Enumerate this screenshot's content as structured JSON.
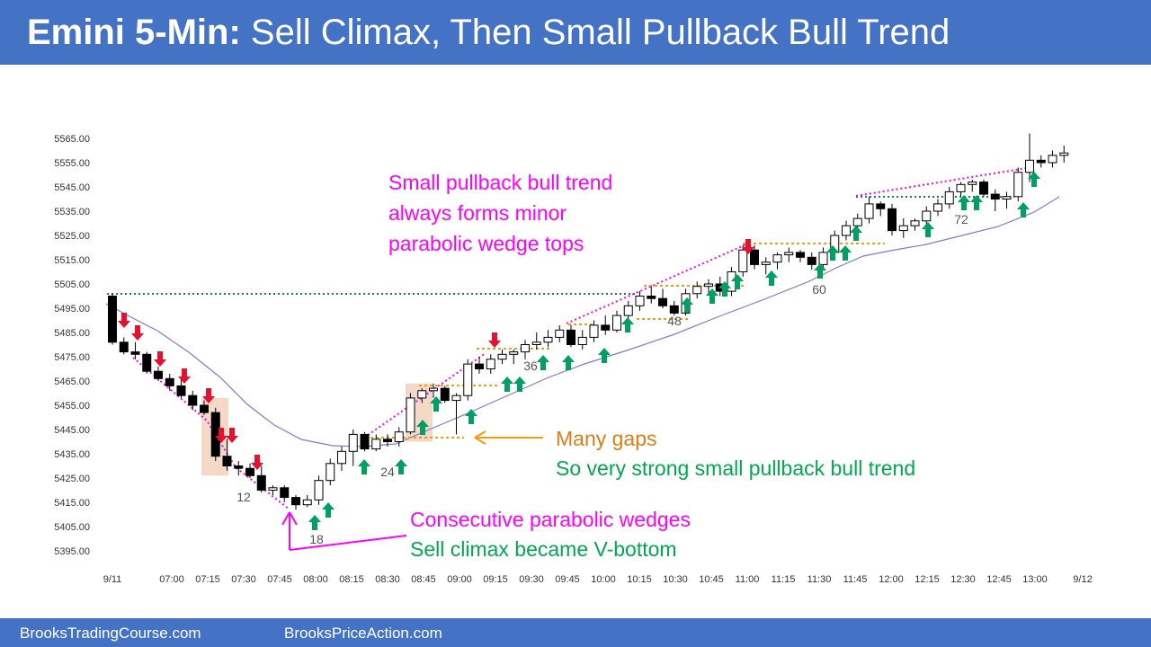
{
  "header": {
    "title_bold": "Emini 5-Min:",
    "title_rest": "Sell Climax, Then Small Pullback Bull Trend",
    "background": "#4472c4"
  },
  "footer": {
    "left_link": "BrooksTradingCourse.com",
    "right_link": "BrooksPriceAction.com"
  },
  "chart_data": {
    "type": "candlestick",
    "title": "Emini 5-Min: Sell Climax, Then Small Pullback Bull Trend",
    "y_ticks": [
      "5565.00",
      "5555.00",
      "5545.00",
      "5535.00",
      "5525.00",
      "5515.00",
      "5505.00",
      "5495.00",
      "5485.00",
      "5475.00",
      "5465.00",
      "5455.00",
      "5445.00",
      "5435.00",
      "5425.00",
      "5415.00",
      "5405.00",
      "5395.00"
    ],
    "ylim": [
      5390,
      5570
    ],
    "x_ticks": [
      "9/11",
      "07:00",
      "07:15",
      "07:30",
      "07:45",
      "08:00",
      "08:15",
      "08:30",
      "08:45",
      "09:00",
      "09:15",
      "09:30",
      "09:45",
      "10:00",
      "10:15",
      "10:30",
      "10:45",
      "11:00",
      "11:15",
      "11:30",
      "11:45",
      "12:00",
      "12:15",
      "12:30",
      "12:45",
      "13:00",
      "9/12"
    ],
    "bars": [
      [
        5500,
        5501,
        5480,
        5481
      ],
      [
        5481,
        5483,
        5476,
        5477
      ],
      [
        5477,
        5481,
        5474,
        5476
      ],
      [
        5476,
        5477,
        5468,
        5469
      ],
      [
        5469,
        5471,
        5465,
        5466
      ],
      [
        5466,
        5468,
        5461,
        5463
      ],
      [
        5463,
        5466,
        5458,
        5459
      ],
      [
        5459,
        5461,
        5453,
        5455
      ],
      [
        5455,
        5457,
        5451,
        5452
      ],
      [
        5452,
        5454,
        5432,
        5434
      ],
      [
        5434,
        5441,
        5428,
        5430
      ],
      [
        5430,
        5432,
        5426,
        5429
      ],
      [
        5429,
        5431,
        5425,
        5426
      ],
      [
        5426,
        5430,
        5419,
        5420
      ],
      [
        5420,
        5422,
        5418,
        5421
      ],
      [
        5421,
        5422,
        5415,
        5417
      ],
      [
        5417,
        5418,
        5412,
        5414
      ],
      [
        5414,
        5418,
        5413,
        5416
      ],
      [
        5416,
        5426,
        5414,
        5424
      ],
      [
        5424,
        5433,
        5422,
        5431
      ],
      [
        5431,
        5438,
        5428,
        5436
      ],
      [
        5436,
        5445,
        5430,
        5443
      ],
      [
        5443,
        5444,
        5436,
        5437
      ],
      [
        5437,
        5443,
        5436,
        5441
      ],
      [
        5441,
        5443,
        5438,
        5440
      ],
      [
        5440,
        5446,
        5438,
        5444
      ],
      [
        5444,
        5460,
        5443,
        5458
      ],
      [
        5458,
        5462,
        5456,
        5461
      ],
      [
        5461,
        5464,
        5458,
        5462
      ],
      [
        5462,
        5463,
        5456,
        5457
      ],
      [
        5457,
        5460,
        5443,
        5459
      ],
      [
        5459,
        5474,
        5457,
        5472
      ],
      [
        5472,
        5475,
        5468,
        5470
      ],
      [
        5470,
        5476,
        5468,
        5474
      ],
      [
        5474,
        5478,
        5472,
        5476
      ],
      [
        5476,
        5478,
        5472,
        5477
      ],
      [
        5477,
        5482,
        5474,
        5480
      ],
      [
        5480,
        5485,
        5478,
        5481
      ],
      [
        5481,
        5486,
        5479,
        5483
      ],
      [
        5483,
        5488,
        5481,
        5486
      ],
      [
        5486,
        5488,
        5479,
        5480
      ],
      [
        5480,
        5486,
        5478,
        5483
      ],
      [
        5483,
        5490,
        5481,
        5488
      ],
      [
        5488,
        5492,
        5484,
        5486
      ],
      [
        5486,
        5494,
        5485,
        5492
      ],
      [
        5492,
        5498,
        5490,
        5496
      ],
      [
        5496,
        5502,
        5494,
        5500
      ],
      [
        5500,
        5504,
        5497,
        5499
      ],
      [
        5499,
        5503,
        5495,
        5496
      ],
      [
        5496,
        5498,
        5492,
        5493
      ],
      [
        5493,
        5503,
        5492,
        5501
      ],
      [
        5501,
        5506,
        5499,
        5504
      ],
      [
        5504,
        5507,
        5501,
        5505
      ],
      [
        5505,
        5508,
        5500,
        5502
      ],
      [
        5502,
        5512,
        5500,
        5510
      ],
      [
        5510,
        5521,
        5508,
        5519
      ],
      [
        5519,
        5521,
        5511,
        5513
      ],
      [
        5513,
        5516,
        5509,
        5514
      ],
      [
        5514,
        5518,
        5511,
        5517
      ],
      [
        5517,
        5520,
        5514,
        5518
      ],
      [
        5518,
        5519,
        5514,
        5516
      ],
      [
        5516,
        5518,
        5511,
        5513
      ],
      [
        5513,
        5520,
        5511,
        5518
      ],
      [
        5518,
        5527,
        5516,
        5525
      ],
      [
        5525,
        5531,
        5523,
        5529
      ],
      [
        5529,
        5534,
        5526,
        5532
      ],
      [
        5532,
        5541,
        5530,
        5538
      ],
      [
        5538,
        5539,
        5533,
        5536
      ],
      [
        5536,
        5538,
        5525,
        5527
      ],
      [
        5527,
        5532,
        5524,
        5529
      ],
      [
        5529,
        5532,
        5527,
        5531
      ],
      [
        5531,
        5537,
        5529,
        5535
      ],
      [
        5535,
        5540,
        5533,
        5538
      ],
      [
        5538,
        5545,
        5536,
        5543
      ],
      [
        5543,
        5547,
        5541,
        5546
      ],
      [
        5546,
        5548,
        5543,
        5547
      ],
      [
        5547,
        5548,
        5541,
        5542
      ],
      [
        5542,
        5544,
        5535,
        5540
      ],
      [
        5540,
        5543,
        5536,
        5541
      ],
      [
        5541,
        5553,
        5539,
        5551
      ],
      [
        5551,
        5567,
        5547,
        5556
      ],
      [
        5556,
        5558,
        5553,
        5555
      ],
      [
        5555,
        5560,
        5553,
        5558
      ],
      [
        5558,
        5562,
        5555,
        5559
      ]
    ],
    "bar_labels": [
      {
        "bar": 12,
        "text": "12"
      },
      {
        "bar": 18,
        "text": "18"
      },
      {
        "bar": 24,
        "text": "24"
      },
      {
        "bar": 36,
        "text": "36"
      },
      {
        "bar": 48,
        "text": "48"
      },
      {
        "bar": 60,
        "text": "60"
      },
      {
        "bar": 72,
        "text": "72"
      }
    ],
    "annotations": [
      {
        "text": "Small pullback bull trend",
        "color": "#ff00ff"
      },
      {
        "text": "always forms minor",
        "color": "#ff00ff"
      },
      {
        "text": "parabolic wedge tops",
        "color": "#ff00ff"
      },
      {
        "text": "Many gaps",
        "color": "#e07b16"
      },
      {
        "text": "So very strong small pullback bull trend",
        "color": "#00a84f"
      },
      {
        "text": "Consecutive parabolic wedges",
        "color": "#ff00ff"
      },
      {
        "text": "Sell climax became V-bottom",
        "color": "#00a84f"
      }
    ],
    "colors": {
      "sell_arrow": "#e8102e",
      "buy_arrow": "#00a060",
      "moving_average": "#7b7bd6",
      "wedge_line": "#ff00ff",
      "gap_line": "#f39c12",
      "level_line": "#1f6f8b",
      "highlight_box": "#f5d9c7"
    }
  }
}
